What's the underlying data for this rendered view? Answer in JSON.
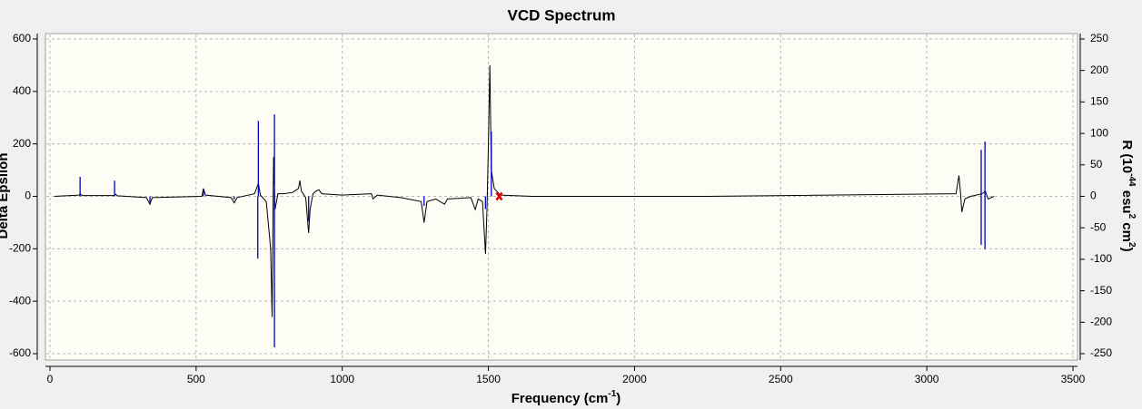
{
  "chart_data": {
    "type": "line",
    "title": "VCD Spectrum",
    "x_label_parts": [
      {
        "text": "Frequency (cm"
      },
      {
        "text": "-1",
        "sup": true
      },
      {
        "text": ")"
      }
    ],
    "y_label": "Delta Epsilon",
    "y2_label_parts": [
      {
        "text": "R (10"
      },
      {
        "text": "-44",
        "sup": true
      },
      {
        "text": " esu"
      },
      {
        "text": "2",
        "sup": true
      },
      {
        "text": " cm"
      },
      {
        "text": "2",
        "sup": true
      },
      {
        "text": ")"
      }
    ],
    "xlim": [
      0,
      3500
    ],
    "xticks": [
      0,
      500,
      1000,
      1500,
      2000,
      2500,
      3000,
      3500
    ],
    "ylim": [
      -600,
      600
    ],
    "yticks": [
      -600,
      -400,
      -200,
      0,
      200,
      400,
      600
    ],
    "y2lim": [
      -250,
      250
    ],
    "y2ticks": [
      -250,
      -200,
      -150,
      -100,
      -50,
      0,
      50,
      100,
      150,
      200,
      250
    ],
    "grid": true,
    "series": [
      {
        "kind": "line",
        "color": "#000000",
        "x": [
          15,
          100,
          103,
          110,
          220,
          225,
          230,
          330,
          342,
          350,
          520,
          525,
          532,
          620,
          630,
          640,
          700,
          713,
          720,
          740,
          755,
          760,
          765,
          770,
          780,
          800,
          830,
          850,
          855,
          860,
          875,
          885,
          890,
          900,
          910,
          920,
          930,
          1000,
          1100,
          1105,
          1120,
          1200,
          1270,
          1280,
          1290,
          1320,
          1350,
          1360,
          1440,
          1455,
          1465,
          1480,
          1490,
          1495,
          1500,
          1505,
          1510,
          1520,
          1540,
          1600,
          1650,
          2250,
          3100,
          3110,
          3115,
          3120,
          3130,
          3150,
          3190,
          3200,
          3210,
          3230
        ],
        "values": [
          0,
          5,
          10,
          3,
          3,
          8,
          2,
          -5,
          -30,
          -5,
          0,
          30,
          5,
          -5,
          -25,
          -5,
          10,
          50,
          5,
          -20,
          -200,
          -460,
          150,
          -50,
          10,
          10,
          15,
          30,
          60,
          20,
          -5,
          -140,
          -50,
          10,
          20,
          25,
          10,
          5,
          10,
          -10,
          5,
          -5,
          -20,
          -100,
          -20,
          -10,
          -30,
          -10,
          -5,
          -50,
          -10,
          -20,
          -220,
          -50,
          200,
          500,
          100,
          30,
          5,
          2,
          0,
          0,
          10,
          80,
          20,
          -60,
          -10,
          0,
          10,
          20,
          -10,
          0
        ]
      },
      {
        "kind": "stick",
        "color": "#0000c0",
        "axis": "y2",
        "x": [
          103,
          221,
          342,
          525,
          630,
          711,
          713,
          768,
          768,
          885,
          1280,
          1490,
          1510,
          3186,
          3186,
          3199,
          3199
        ],
        "values": [
          31,
          25,
          -10,
          10,
          -5,
          -99,
          120,
          130,
          -240,
          -40,
          -15,
          -20,
          103,
          74,
          -77,
          87,
          -84
        ]
      },
      {
        "kind": "marker",
        "color": "#e00000",
        "x": [
          1537
        ],
        "values": [
          0
        ]
      }
    ]
  }
}
